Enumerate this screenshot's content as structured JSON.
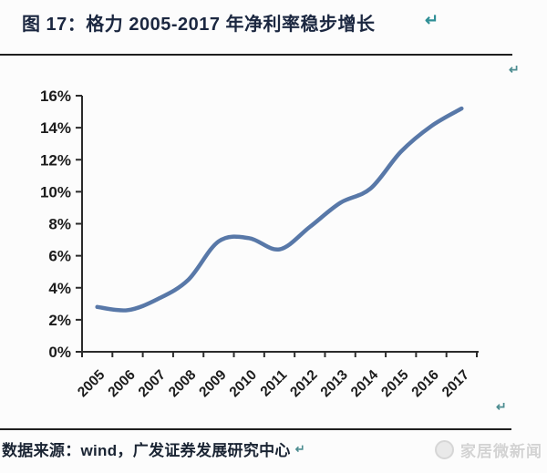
{
  "figure": {
    "title": "图 17：格力 2005-2017 年净利率稳步增长",
    "left_edge_fragment": "：",
    "return_mark": "↵"
  },
  "chart_data": {
    "type": "line",
    "title": "",
    "xlabel": "",
    "ylabel": "",
    "unit": "%",
    "categories": [
      "2005",
      "2006",
      "2007",
      "2008",
      "2009",
      "2010",
      "2011",
      "2012",
      "2013",
      "2014",
      "2015",
      "2016",
      "2017"
    ],
    "values": [
      2.8,
      2.6,
      3.3,
      4.5,
      6.9,
      7.1,
      6.4,
      7.8,
      9.3,
      10.2,
      12.5,
      14.1,
      15.2
    ],
    "y_ticks": [
      {
        "value": 0,
        "label": "0%"
      },
      {
        "value": 2,
        "label": "2%"
      },
      {
        "value": 4,
        "label": "4%"
      },
      {
        "value": 6,
        "label": "6%"
      },
      {
        "value": 8,
        "label": "8%"
      },
      {
        "value": 10,
        "label": "10%"
      },
      {
        "value": 12,
        "label": "12%"
      },
      {
        "value": 14,
        "label": "14%"
      },
      {
        "value": 16,
        "label": "16%"
      }
    ],
    "ylim": [
      0,
      16
    ],
    "grid": false,
    "legend": false,
    "line_smooth": true,
    "line_color": "#5878A8",
    "x_label_rotation": -45
  },
  "footer": {
    "source_text": "数据来源：wind，广发证券发展研究中心",
    "return_mark": "↵"
  },
  "watermark": {
    "text": "家居微新闻",
    "icon": "media-logo-circle"
  }
}
